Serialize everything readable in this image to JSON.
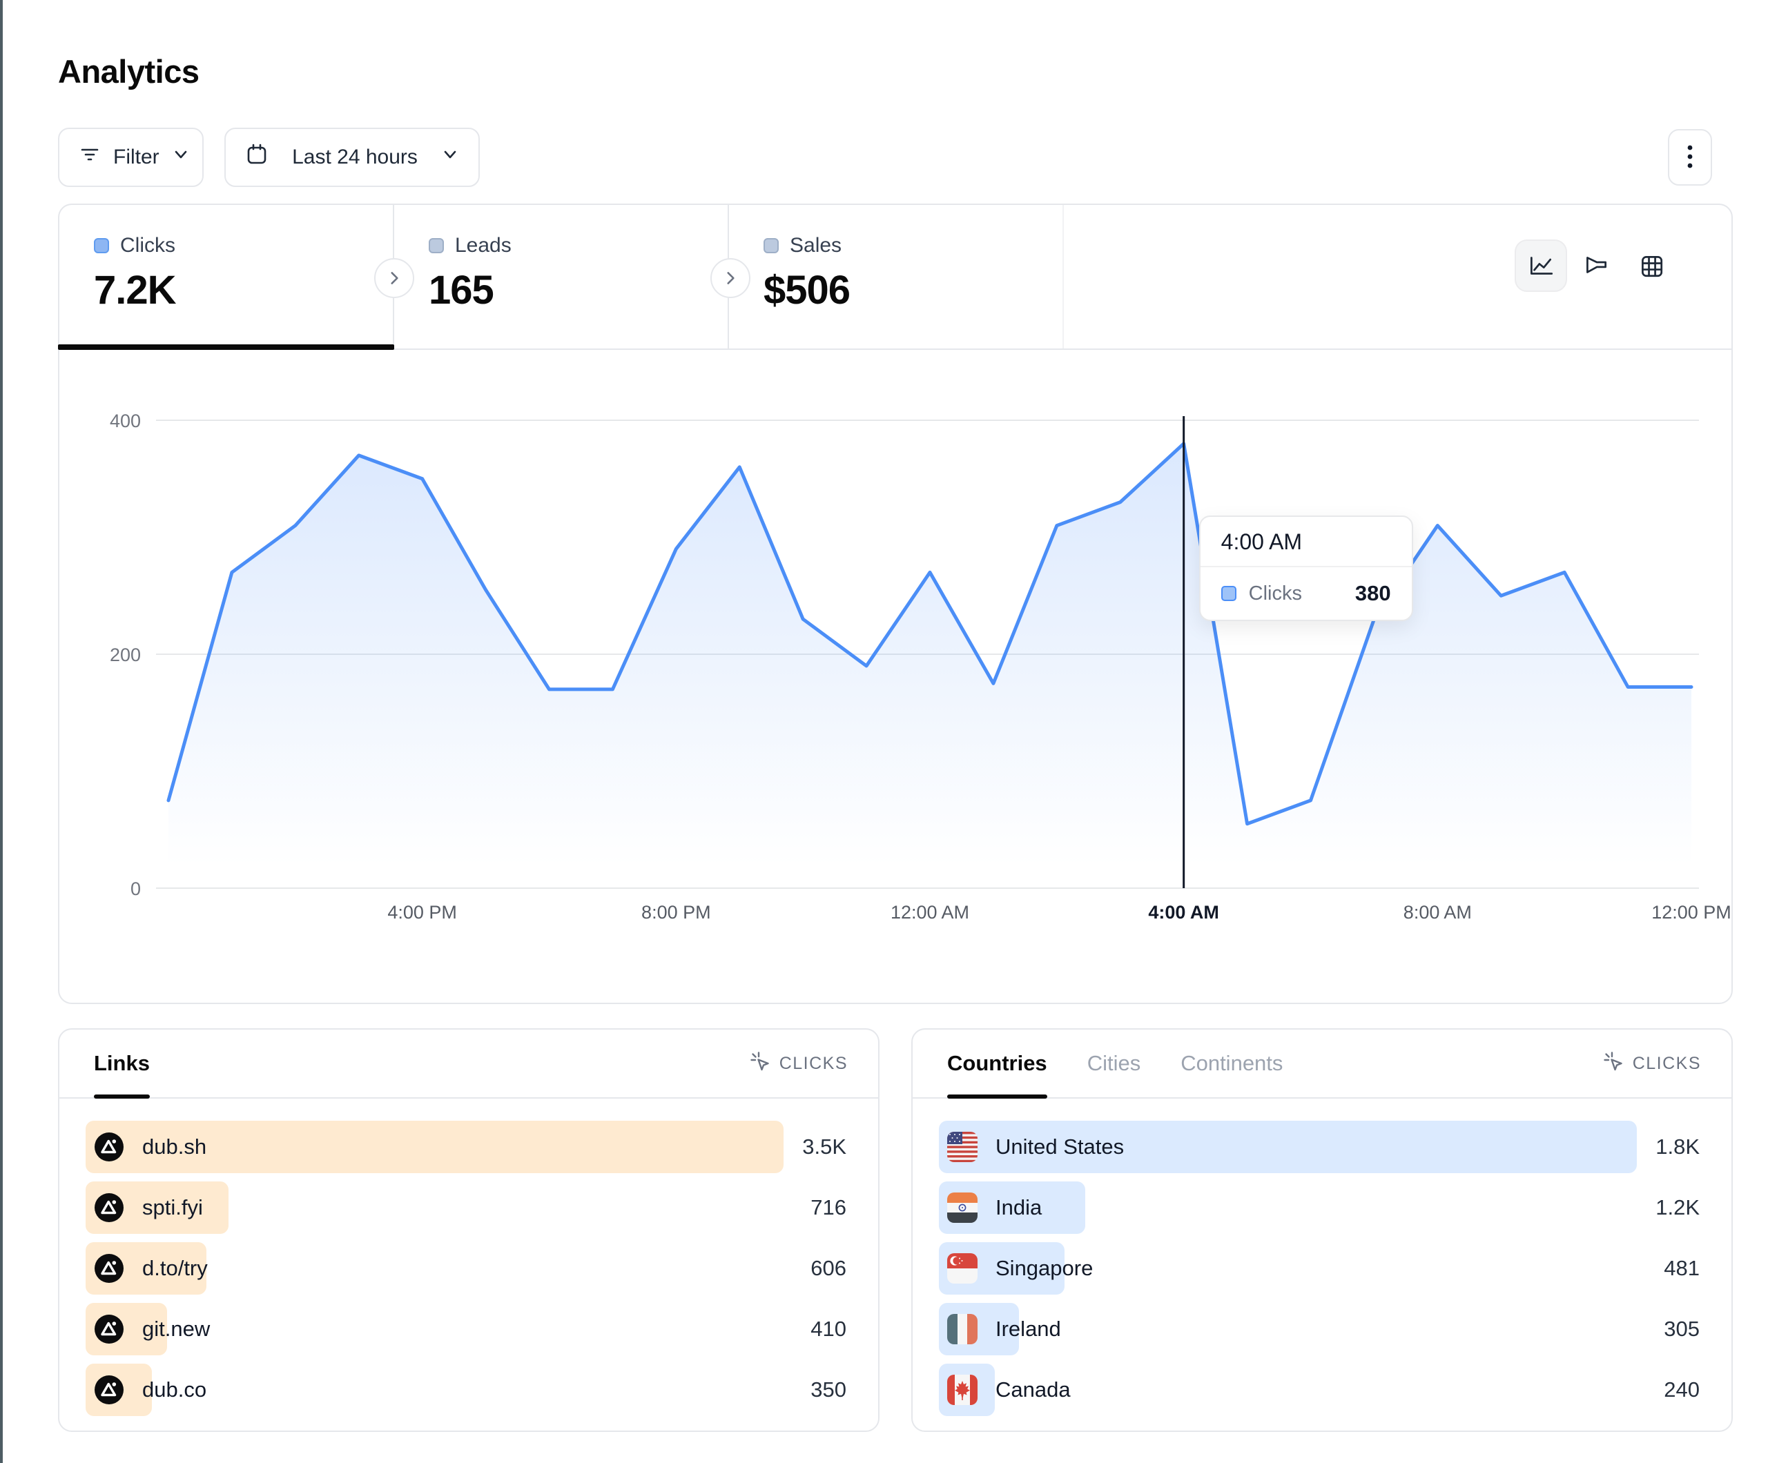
{
  "page": {
    "title": "Analytics"
  },
  "toolbar": {
    "filter_label": "Filter",
    "date_range_label": "Last 24 hours"
  },
  "stats": {
    "tabs": [
      {
        "label": "Clicks",
        "value": "7.2K",
        "active": true
      },
      {
        "label": "Leads",
        "value": "165",
        "active": false
      },
      {
        "label": "Sales",
        "value": "$506",
        "active": false
      }
    ]
  },
  "chart_data": {
    "type": "area",
    "title": "",
    "xlabel": "",
    "ylabel": "",
    "x": [
      "12:00 PM",
      "1:00 PM",
      "2:00 PM",
      "3:00 PM",
      "4:00 PM",
      "5:00 PM",
      "6:00 PM",
      "7:00 PM",
      "8:00 PM",
      "9:00 PM",
      "10:00 PM",
      "11:00 PM",
      "12:00 AM",
      "1:00 AM",
      "2:00 AM",
      "3:00 AM",
      "4:00 AM",
      "5:00 AM",
      "6:00 AM",
      "7:00 AM",
      "8:00 AM",
      "9:00 AM",
      "10:00 AM",
      "11:00 AM",
      "12:00 PM"
    ],
    "series": [
      {
        "name": "Clicks",
        "values": [
          75,
          270,
          310,
          370,
          350,
          255,
          170,
          170,
          290,
          360,
          230,
          190,
          270,
          175,
          310,
          330,
          380,
          55,
          75,
          230,
          310,
          250,
          270,
          172,
          172
        ]
      }
    ],
    "ylim": [
      0,
      460
    ],
    "y_ticks": [
      0,
      200,
      400
    ],
    "x_tick_labels": [
      "4:00 PM",
      "8:00 PM",
      "12:00 AM",
      "4:00 AM",
      "8:00 AM",
      "12:00 PM"
    ],
    "x_tick_indices": [
      4,
      8,
      12,
      16,
      20,
      24
    ],
    "grid": "horizontal",
    "legend_position": "none",
    "hover": {
      "index": 16,
      "time": "4:00 AM",
      "label": "Clicks",
      "value": "380"
    }
  },
  "links_panel": {
    "title": "Links",
    "metric_label": "CLICKS",
    "rows": [
      {
        "label": "dub.sh",
        "value": "3.5K",
        "clicks": 3500,
        "bar_pct": 100,
        "icon": "avatar-dub"
      },
      {
        "label": "spti.fyi",
        "value": "716",
        "clicks": 716,
        "bar_pct": 20.5,
        "icon": "avatar-dub"
      },
      {
        "label": "d.to/try",
        "value": "606",
        "clicks": 606,
        "bar_pct": 17.3,
        "icon": "avatar-dub"
      },
      {
        "label": "git.new",
        "value": "410",
        "clicks": 410,
        "bar_pct": 11.7,
        "icon": "avatar-dub"
      },
      {
        "label": "dub.co",
        "value": "350",
        "clicks": 350,
        "bar_pct": 9.5,
        "icon": "avatar-dub"
      }
    ]
  },
  "countries_panel": {
    "tabs": [
      "Countries",
      "Cities",
      "Continents"
    ],
    "active_tab": "Countries",
    "metric_label": "CLICKS",
    "rows": [
      {
        "label": "United States",
        "value": "1.8K",
        "clicks": 1800,
        "bar_pct": 100,
        "icon": "flag-us"
      },
      {
        "label": "India",
        "value": "1.2K",
        "clicks": 1200,
        "bar_pct": 21,
        "icon": "flag-in"
      },
      {
        "label": "Singapore",
        "value": "481",
        "clicks": 481,
        "bar_pct": 18,
        "icon": "flag-sg"
      },
      {
        "label": "Ireland",
        "value": "305",
        "clicks": 305,
        "bar_pct": 11.5,
        "icon": "flag-ie"
      },
      {
        "label": "Canada",
        "value": "240",
        "clicks": 240,
        "bar_pct": 8,
        "icon": "flag-ca"
      }
    ]
  },
  "colors": {
    "accent_blue": "#4b8ef7",
    "area_fill_top": "rgba(75,142,247,0.20)",
    "links_bar": "#feead0",
    "countries_bar": "#dbeafe",
    "crosshair": "#111827",
    "grid_line": "#e6e8ea"
  }
}
